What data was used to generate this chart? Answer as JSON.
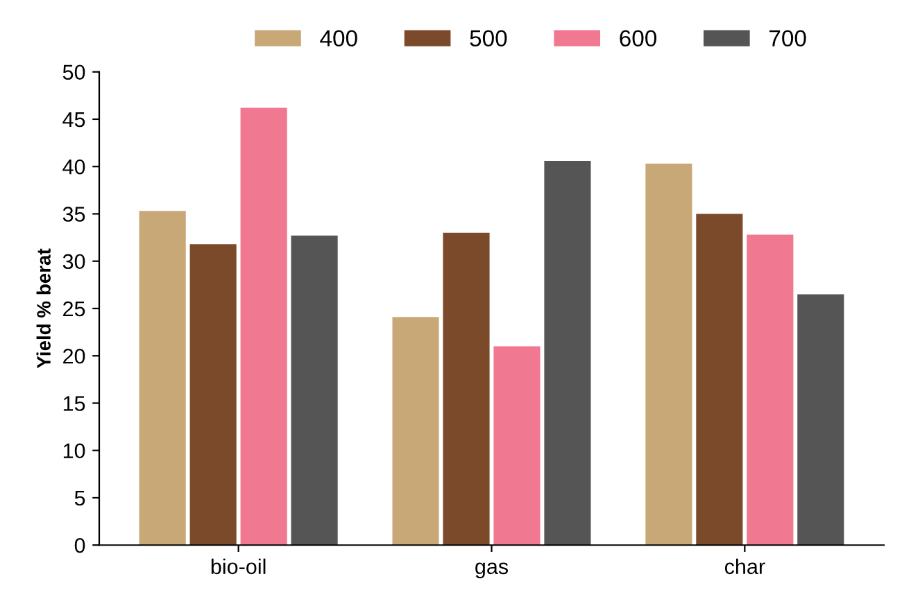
{
  "chart_data": {
    "type": "bar",
    "ylabel": "Yield % berat",
    "categories": [
      "bio-oil",
      "gas",
      "char"
    ],
    "series": [
      {
        "name": "400",
        "color": "#c9a878",
        "values": [
          35.3,
          24.1,
          40.3
        ]
      },
      {
        "name": "500",
        "color": "#7b4a2a",
        "values": [
          31.8,
          33.0,
          35.0
        ]
      },
      {
        "name": "600",
        "color": "#f07890",
        "values": [
          46.2,
          21.0,
          32.8
        ]
      },
      {
        "name": "700",
        "color": "#555555",
        "values": [
          32.7,
          40.6,
          26.5
        ]
      }
    ],
    "ylim": [
      0,
      50
    ],
    "yticks": [
      0,
      5,
      10,
      15,
      20,
      25,
      30,
      35,
      40,
      45,
      50
    ],
    "grid": false,
    "legend": "top"
  }
}
